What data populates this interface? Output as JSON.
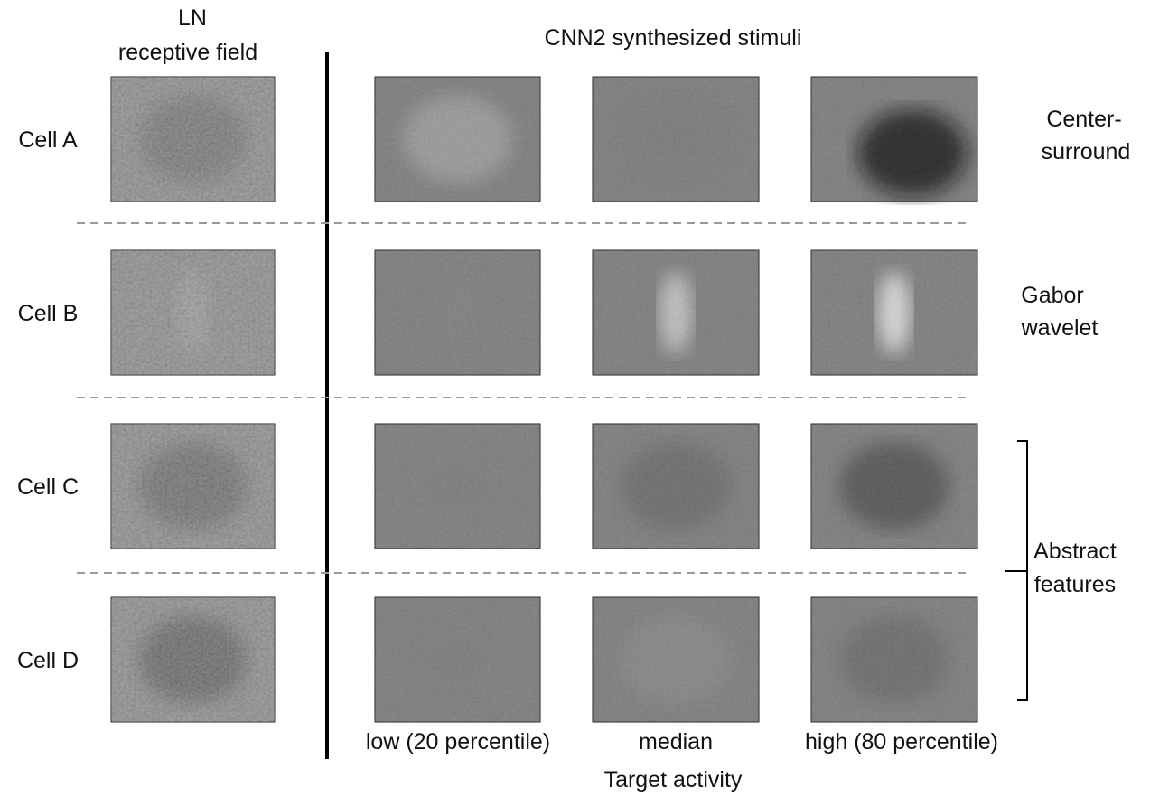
{
  "header": {
    "ln_title": [
      "LN",
      "receptive field"
    ],
    "cnn_title": "CNN2 synthesized stimuli"
  },
  "rows": [
    "Cell A",
    "Cell B",
    "Cell C",
    "Cell D"
  ],
  "features": [
    [
      "Center-",
      "surround"
    ],
    [
      "Gabor",
      "wavelet"
    ],
    [
      "Abstract",
      "features"
    ]
  ],
  "columns": [
    "low (20 percentile)",
    "median",
    "high (80 percentile)"
  ],
  "x_axis_label": "Target activity"
}
